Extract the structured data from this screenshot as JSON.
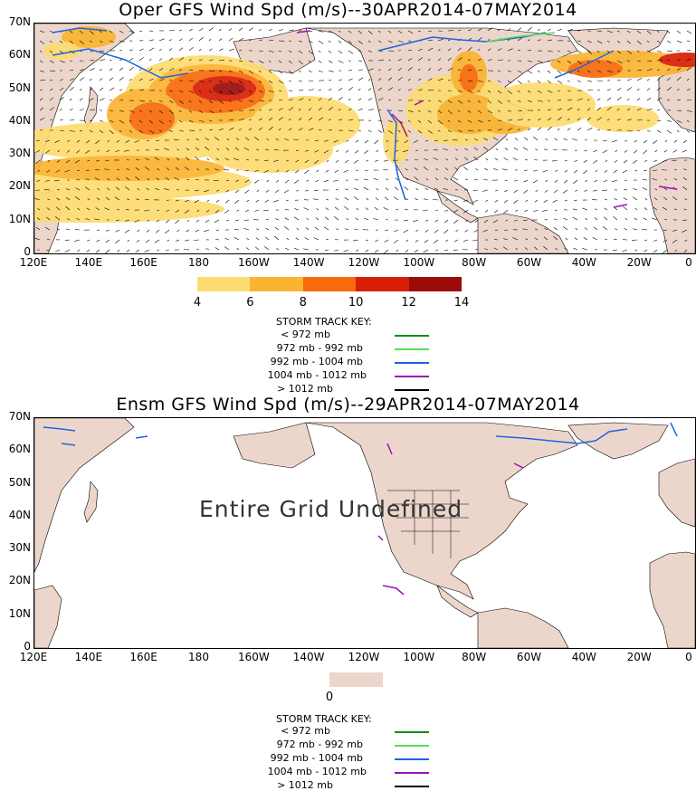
{
  "panels": [
    {
      "title": "Oper GFS Wind Spd (m/s)--30APR2014-07MAY2014",
      "colorbar": {
        "colors": [
          "#fddc70",
          "#fbb431",
          "#f86a0a",
          "#d81e05",
          "#9c0a0a"
        ],
        "labels": [
          "4",
          "6",
          "8",
          "10",
          "12",
          "14"
        ]
      }
    },
    {
      "title": "Ensm GFS Wind Spd (m/s)--29APR2014-07MAY2014",
      "overlay_text": "Entire Grid Undefined",
      "colorbar": {
        "colors": [
          "#ecd6cc"
        ],
        "labels": [
          "0"
        ]
      }
    }
  ],
  "y_ticks": [
    "70N",
    "60N",
    "50N",
    "40N",
    "30N",
    "20N",
    "10N",
    "0"
  ],
  "x_ticks": [
    "120E",
    "140E",
    "160E",
    "180",
    "160W",
    "140W",
    "120W",
    "100W",
    "80W",
    "60W",
    "40W",
    "20W",
    "0"
  ],
  "storm_key": {
    "title": "STORM TRACK KEY:",
    "entries": [
      {
        "label": "< 972 mb",
        "color": "#138d13"
      },
      {
        "label": "972 mb - 992 mb",
        "color": "#52e052"
      },
      {
        "label": "992 mb - 1004 mb",
        "color": "#1e64e0"
      },
      {
        "label": "1004 mb - 1012 mb",
        "color": "#9a12b8"
      },
      {
        "label": "> 1012 mb",
        "color": "#000000"
      }
    ]
  },
  "land_color": "#ecd6cc"
}
